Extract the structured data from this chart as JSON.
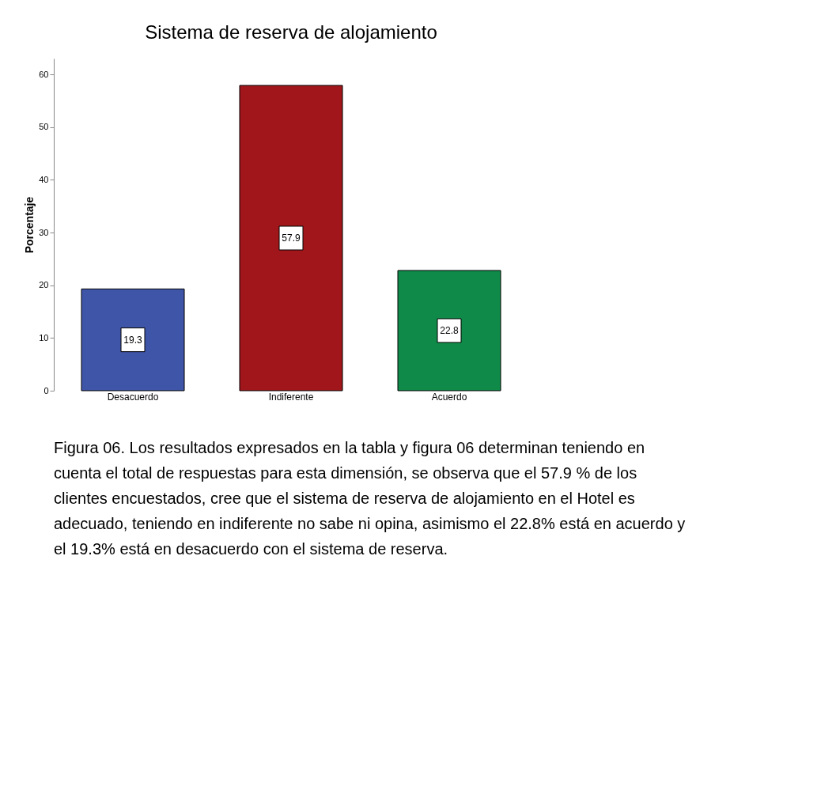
{
  "chart_data": {
    "type": "bar",
    "title": "Sistema de reserva de alojamiento",
    "ylabel": "Porcentaje",
    "categories": [
      "Desacuerdo",
      "Indiferente",
      "Acuerdo"
    ],
    "values": [
      19.3,
      57.9,
      22.8
    ],
    "colors": [
      "#3f55a8",
      "#a0161b",
      "#0f8a48"
    ],
    "ylim": [
      0,
      63
    ],
    "yticks": [
      0,
      10,
      20,
      30,
      40,
      50,
      60
    ],
    "grid": false,
    "data_labels": true,
    "annotations": [
      "Figura 06. Los resultados expresados en la tabla y figura 06 determinan teniendo en cuenta el total de respuestas para esta dimensión, se observa que el 57.9 % de los clientes encuestados, cree que el sistema de reserva de alojamiento en el Hotel es adecuado, teniendo en indiferente no sabe ni opina, asimismo el 22.8% está en acuerdo y el 19.3% está en desacuerdo con el sistema de reserva."
    ]
  }
}
